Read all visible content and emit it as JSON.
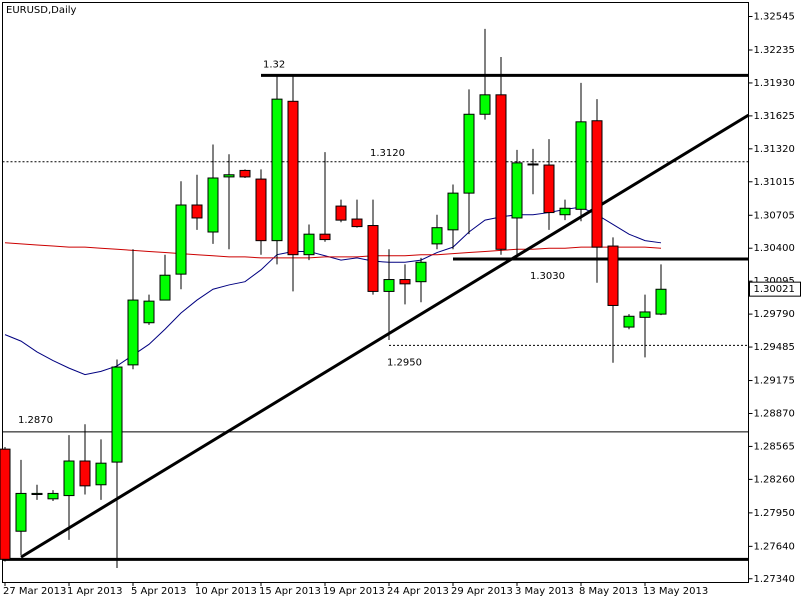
{
  "chart_data": {
    "type": "candlestick",
    "title": "EURUSD,Daily",
    "categories": [
      "27 Mar 2013",
      null,
      null,
      null,
      "1 Apr 2013",
      null,
      null,
      null,
      "5 Apr 2013",
      null,
      null,
      null,
      "10 Apr 2013",
      null,
      null,
      null,
      "15 Apr 2013",
      null,
      null,
      null,
      "19 Apr 2013",
      null,
      null,
      null,
      "24 Apr 2013",
      null,
      null,
      null,
      "29 Apr 2013",
      null,
      null,
      null,
      "3 May 2013",
      null,
      null,
      null,
      "8 May 2013",
      null,
      null,
      null,
      "13 May 2013",
      null
    ],
    "open": [
      1.2854,
      1.2778,
      1.2812,
      1.2808,
      1.2811,
      1.2843,
      1.2821,
      1.2842,
      1.2932,
      1.2971,
      1.2992,
      1.3016,
      1.308,
      1.3055,
      1.3106,
      1.3112,
      1.3104,
      1.3047,
      1.3176,
      1.3034,
      1.3053,
      1.3079,
      1.3067,
      1.3061,
      1.3,
      1.3011,
      1.3009,
      1.3044,
      1.3057,
      1.3091,
      1.3164,
      1.3182,
      1.3068,
      1.3118,
      1.3117,
      1.3071,
      1.3076,
      1.3158,
      1.3042,
      1.2967,
      1.2976,
      1.2979
    ],
    "high": [
      1.2856,
      1.2844,
      1.2821,
      1.2816,
      1.2867,
      1.2877,
      1.2863,
      1.2937,
      1.3039,
      1.2997,
      1.3034,
      1.3102,
      1.3108,
      1.3136,
      1.3127,
      1.3113,
      1.3113,
      1.3201,
      1.3201,
      1.3062,
      1.3129,
      1.3085,
      1.3085,
      1.3085,
      1.3039,
      1.3025,
      1.3031,
      1.3071,
      1.3099,
      1.3187,
      1.3243,
      1.3217,
      1.3131,
      1.3132,
      1.3141,
      1.3085,
      1.3193,
      1.3178,
      1.305,
      1.2979,
      1.2997,
      1.3025
    ],
    "low": [
      1.275,
      1.2756,
      1.2807,
      1.2806,
      1.277,
      1.2812,
      1.2807,
      1.2744,
      1.2928,
      1.2969,
      1.2992,
      1.3002,
      1.3057,
      1.3044,
      1.3039,
      1.3105,
      1.3034,
      1.3025,
      1.3,
      1.3029,
      1.3046,
      1.3064,
      1.3059,
      1.2997,
      1.2955,
      1.2988,
      1.299,
      1.3039,
      1.3039,
      1.3053,
      1.3159,
      1.3034,
      1.3033,
      1.309,
      1.3057,
      1.3066,
      1.3065,
      1.3008,
      1.2934,
      1.2965,
      1.2939,
      1.2978
    ],
    "close": [
      1.2752,
      1.2813,
      1.2813,
      1.2813,
      1.2843,
      1.282,
      1.2841,
      1.293,
      1.2992,
      1.2991,
      1.3015,
      1.308,
      1.3068,
      1.3105,
      1.3108,
      1.3106,
      1.3047,
      1.3178,
      1.3034,
      1.3053,
      1.3048,
      1.3066,
      1.306,
      1.3,
      1.3011,
      1.3007,
      1.3027,
      1.3059,
      1.3091,
      1.3164,
      1.3182,
      1.3039,
      1.3119,
      1.3118,
      1.3073,
      1.3077,
      1.3157,
      1.3041,
      1.2987,
      1.2977,
      1.2981,
      1.3002
    ],
    "up_color": "#00ff00",
    "down_color": "#ff0000",
    "lines": [
      {
        "color": "#000080",
        "values": [
          1.296,
          1.2954,
          1.2944,
          1.2936,
          1.2929,
          1.2923,
          1.2926,
          1.2931,
          1.2941,
          1.2951,
          1.2965,
          1.298,
          1.2992,
          1.3002,
          1.3006,
          1.3009,
          1.302,
          1.3034,
          1.3037,
          1.3037,
          1.3033,
          1.3029,
          1.3031,
          1.3028,
          1.3027,
          1.3027,
          1.3029,
          1.3036,
          1.3041,
          1.3055,
          1.3066,
          1.3069,
          1.3071,
          1.3071,
          1.3073,
          1.3076,
          1.3078,
          1.3071,
          1.3062,
          1.3053,
          1.3047,
          1.3045
        ]
      },
      {
        "color": "#cc0000",
        "values": [
          1.3045,
          1.3044,
          1.3043,
          1.3042,
          1.3041,
          1.3041,
          1.304,
          1.3039,
          1.3038,
          1.3037,
          1.3036,
          1.3035,
          1.3034,
          1.3033,
          1.3032,
          1.3032,
          1.3031,
          1.3031,
          1.3031,
          1.3031,
          1.3032,
          1.3032,
          1.3032,
          1.3033,
          1.3033,
          1.3033,
          1.3034,
          1.3034,
          1.3035,
          1.3036,
          1.3037,
          1.3038,
          1.3039,
          1.3039,
          1.304,
          1.304,
          1.3041,
          1.3041,
          1.3041,
          1.3041,
          1.3041,
          1.304
        ]
      }
    ],
    "levels": [
      {
        "label": "1.32",
        "value": 1.32,
        "start": 16,
        "style": "thick"
      },
      {
        "label": "1.3120",
        "value": 1.312,
        "start": 0,
        "style": "dashed"
      },
      {
        "label": "1.3030",
        "value": 1.303,
        "start": 28,
        "style": "thick"
      },
      {
        "label": "1.2950",
        "value": 1.295,
        "start": 24,
        "style": "dashed"
      },
      {
        "label": "1.2870",
        "value": 1.287,
        "start": 0,
        "style": "thin"
      },
      {
        "value": 1.2752,
        "start": 0,
        "style": "thick"
      }
    ],
    "trendline": [
      [
        1,
        1.2754
      ],
      [
        41,
        1.3114
      ]
    ],
    "last_price": 1.30021,
    "ylim": [
      1.2731,
      1.3267
    ],
    "yticks": [
      1.32545,
      1.32235,
      {
        "value": 1.3193,
        "label": "1.31930"
      },
      1.31625,
      {
        "value": 1.3132,
        "label": "1.31320"
      },
      1.31015,
      1.30705,
      {
        "value": 1.304,
        "label": "1.30400"
      },
      1.30095,
      {
        "value": 1.2979,
        "label": "1.29790"
      },
      1.29485,
      1.29175,
      {
        "value": 1.2887,
        "label": "1.28870"
      },
      1.28565,
      {
        "value": 1.2826,
        "label": "1.28260"
      },
      {
        "value": 1.2795,
        "label": "1.27950"
      },
      {
        "value": 1.2764,
        "label": "1.27640"
      },
      {
        "value": 1.2734,
        "label": "1.27340"
      }
    ]
  }
}
